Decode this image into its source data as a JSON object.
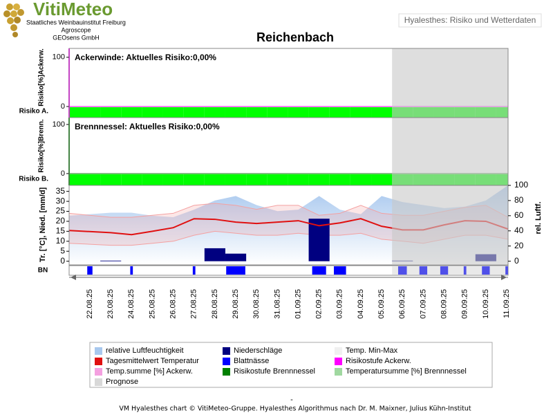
{
  "header": {
    "logo": "VitiMeteo",
    "org_lines": [
      "Staatliches Weinbauinstitut Freiburg",
      "Agroscope",
      "GEOsens GmbH"
    ],
    "tab": "Hyalesthes: Risiko und Wetterdaten",
    "title": "Reichenbach"
  },
  "chart_data": [
    {
      "type": "risk",
      "annotation": "Ackerwinde: Aktuelles Risiko:0,00%",
      "ylabel": "Risiko[%]Ackerw.",
      "row_label": "Risiko A.",
      "ylim": [
        -22.5,
        118
      ],
      "yticks": [
        0,
        100
      ],
      "axis_color": "#ff00ff",
      "series": [
        {
          "color": "#ff00ff",
          "values": [
            0,
            0,
            0,
            0,
            0,
            0,
            0,
            0,
            0,
            0,
            0,
            0,
            0,
            0,
            0,
            0,
            0,
            0,
            0,
            0,
            0
          ]
        }
      ]
    },
    {
      "type": "risk",
      "annotation": "Brennnessel: Aktuelles Risiko:0,00%",
      "ylabel": "Risiko[%]Brenn.",
      "row_label": "Risiko B.",
      "ylim": [
        -24,
        114
      ],
      "yticks": [
        0,
        100
      ],
      "axis_color": "#008000",
      "series": [
        {
          "color": "#008000",
          "values": [
            0,
            0,
            0,
            0,
            0,
            0,
            0,
            0,
            0,
            0,
            0,
            0,
            0,
            0,
            0,
            0,
            0,
            0,
            0,
            0,
            0
          ]
        }
      ]
    },
    {
      "type": "weather",
      "ylabel": "Tr. [°C], Nied. [mm/d]",
      "y2label": "rel. Luftf.",
      "row_label": "BN",
      "categories": [
        "22.08.25",
        "23.08.25",
        "24.08.25",
        "25.08.25",
        "26.08.25",
        "27.08.25",
        "28.08.25",
        "29.08.25",
        "30.08.25",
        "31.08.25",
        "01.09.25",
        "02.09.25",
        "03.09.25",
        "04.09.25",
        "05.09.25",
        "06.09.25",
        "07.09.25",
        "08.09.25",
        "09.09.25",
        "10.09.25",
        "11.09.25"
      ],
      "ylim": [
        -1.5,
        38
      ],
      "yticks": [
        0,
        5,
        10,
        15,
        20,
        25,
        30,
        35
      ],
      "y2lim": [
        -4,
        100
      ],
      "y2ticks": [
        0,
        20,
        40,
        60,
        80,
        100
      ],
      "series": [
        {
          "kind": "area",
          "axis": "y2",
          "color": "#a8c8ee",
          "values": [
            60,
            64,
            64,
            60,
            58,
            68,
            80,
            86,
            74,
            66,
            68,
            86,
            68,
            62,
            86,
            78,
            74,
            70,
            72,
            80,
            100
          ]
        },
        {
          "kind": "band",
          "color": "#f4a0a0",
          "values": [
            24,
            22,
            22,
            23,
            24,
            28,
            29,
            28,
            26,
            28,
            28,
            23,
            24,
            28,
            24,
            23,
            23,
            25,
            27,
            28,
            22
          ],
          "lows": [
            9,
            8,
            8,
            9,
            10,
            13,
            15,
            14,
            13,
            13,
            14,
            13,
            13,
            14,
            11,
            10,
            9,
            11,
            13,
            13,
            11
          ]
        },
        {
          "kind": "bar",
          "color": "#000080",
          "values": [
            0,
            0.3,
            0,
            0,
            0,
            0,
            6.5,
            3.8,
            0,
            0,
            0,
            21.3,
            0,
            0,
            0,
            0.3,
            0,
            0,
            0,
            3.5,
            0
          ]
        },
        {
          "kind": "line",
          "color": "#e01010",
          "values": [
            15.4,
            14.3,
            13.3,
            15,
            16.8,
            21.3,
            21,
            19.6,
            18.9,
            19.6,
            20.3,
            17.8,
            19.2,
            21.3,
            17.5,
            15.7,
            15.7,
            18.2,
            20.3,
            20,
            16.1
          ]
        },
        {
          "kind": "row",
          "color": "#0000ff",
          "values": [
            6,
            0,
            3,
            0,
            0,
            3,
            0,
            22,
            0,
            0,
            0,
            16,
            14,
            0,
            0,
            10,
            9,
            9,
            3,
            9,
            3
          ]
        }
      ]
    }
  ],
  "legend": [
    {
      "name": "relative Luftfeuchtigkeit",
      "color": "#a8c8ee"
    },
    {
      "name": "Niederschläge",
      "color": "#000080"
    },
    {
      "name": "Temp. Min-Max",
      "color": "#f0f0f0"
    },
    {
      "name": "Tagesmittelwert Temperatur",
      "color": "#e01010"
    },
    {
      "name": "Blattnässe",
      "color": "#0000ff"
    },
    {
      "name": "Risikostufe Ackerw.",
      "color": "#ff00ff"
    },
    {
      "name": "Temp.summe [%] Ackerw.",
      "color": "#f4a0e0"
    },
    {
      "name": "Risikostufe Brennnessel",
      "color": "#008000"
    },
    {
      "name": "Temperatursumme [%] Brennnessel",
      "color": "#a0d8a0"
    },
    {
      "name": "Prognose",
      "color": "#d8d8d8",
      "from": "05.09.25"
    }
  ],
  "footer": {
    "dash": "-",
    "text": "VM Hyalesthes chart © VitiMeteo-Gruppe. Hyalesthes Algorithmus nach Dr. M. Maixner, Julius Kühn-Institut"
  }
}
